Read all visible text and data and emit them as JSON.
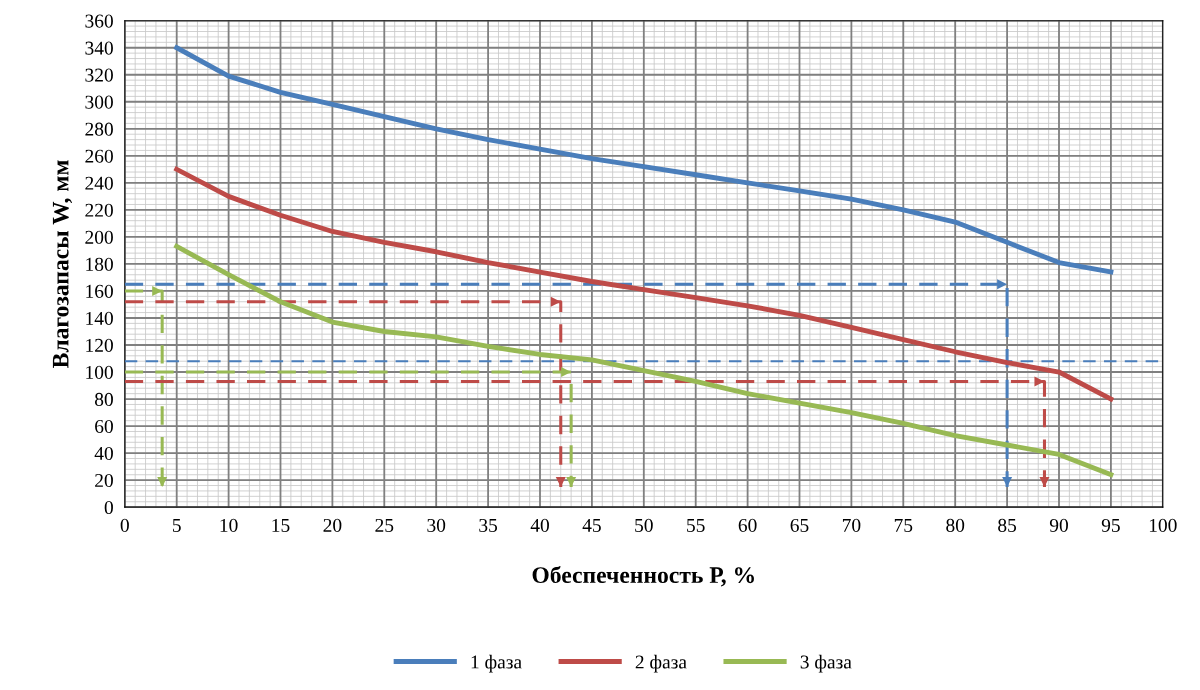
{
  "chart_data": {
    "type": "line",
    "xlabel": "Обеспеченность Р, %",
    "ylabel": "Влагозапасы W, мм",
    "x": [
      5,
      10,
      15,
      20,
      25,
      30,
      35,
      40,
      45,
      50,
      55,
      60,
      65,
      70,
      75,
      80,
      85,
      90,
      95
    ],
    "series": [
      {
        "name": "1 фаза",
        "color": "#4a7ebb",
        "values": [
          340,
          319,
          307,
          298,
          289,
          280,
          272,
          265,
          258,
          252,
          246,
          240,
          234,
          228,
          220,
          211,
          196,
          181,
          174
        ]
      },
      {
        "name": "2 фаза",
        "color": "#be4b48",
        "values": [
          250,
          230,
          216,
          204,
          196,
          189,
          181,
          174,
          167,
          161,
          155,
          149,
          142,
          133,
          124,
          115,
          107,
          100,
          80
        ]
      },
      {
        "name": "3 фаза",
        "color": "#98b954",
        "values": [
          193,
          172,
          152,
          137,
          130,
          126,
          119,
          113,
          109,
          101,
          93,
          84,
          77,
          70,
          62,
          53,
          46,
          39,
          24
        ]
      },
      {
        "color": "#4a7ebb",
        "x": [
          0,
          85,
          85
        ],
        "values": [
          165,
          165,
          15
        ],
        "line_style": "dashed"
      },
      {
        "color": "#98b954",
        "x": [
          0,
          3.6,
          3.6
        ],
        "values": [
          160,
          160,
          15
        ],
        "line_style": "dashed"
      },
      {
        "color": "#be4b48",
        "x": [
          0,
          42,
          42
        ],
        "values": [
          152,
          152,
          15
        ],
        "line_style": "dashed"
      },
      {
        "color": "#98b954",
        "x": [
          0,
          43,
          43
        ],
        "values": [
          100,
          100,
          15
        ],
        "line_style": "dashed"
      },
      {
        "color": "#be4b48",
        "x": [
          0,
          88.6,
          88.6
        ],
        "values": [
          93,
          93,
          15
        ],
        "line_style": "dashed"
      }
    ],
    "ref_lines": [
      {
        "axis": "y",
        "value": 108,
        "color": "#4a7ebb",
        "line_style": "dashed"
      }
    ],
    "xlim": [
      0,
      100
    ],
    "xticks": [
      0,
      5,
      10,
      15,
      20,
      25,
      30,
      35,
      40,
      45,
      50,
      55,
      60,
      65,
      70,
      75,
      80,
      85,
      90,
      95,
      100
    ],
    "ylim": [
      0,
      360
    ],
    "yticks": [
      0,
      20,
      40,
      60,
      80,
      100,
      120,
      140,
      160,
      180,
      200,
      220,
      240,
      260,
      280,
      300,
      320,
      340,
      360
    ],
    "grid": true,
    "legend": "bottom",
    "marker": "none",
    "line_style": "solid"
  }
}
